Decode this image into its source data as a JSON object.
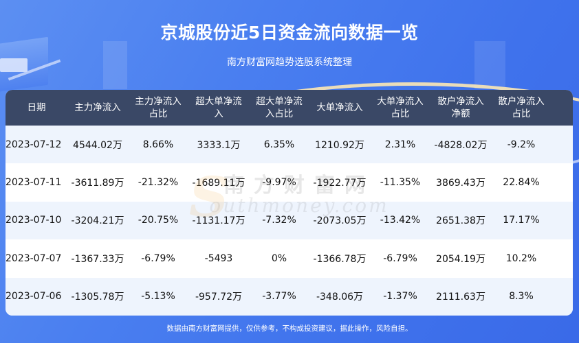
{
  "header": {
    "title": "京城股份近5日资金流向数据一览",
    "subtitle": "南方财富网趋势选股系统整理"
  },
  "table": {
    "columns": [
      "日期",
      "主力净流入",
      "主力净流入\n占比",
      "超大单净流\n入",
      "超大单净流\n入占比",
      "大单净流入",
      "大单净流入\n占比",
      "散户净流入\n净额",
      "散户净流入\n占比"
    ],
    "rows": [
      [
        "2023-07-12",
        "4544.02万",
        "8.66%",
        "3333.1万",
        "6.35%",
        "1210.92万",
        "2.31%",
        "-4828.02万",
        "-9.2%"
      ],
      [
        "2023-07-11",
        "-3611.89万",
        "-21.32%",
        "-1689.11万",
        "-9.97%",
        "-1922.77万",
        "-11.35%",
        "3869.43万",
        "22.84%"
      ],
      [
        "2023-07-10",
        "-3204.21万",
        "-20.75%",
        "-1131.17万",
        "-7.32%",
        "-2073.05万",
        "-13.42%",
        "2651.38万",
        "17.17%"
      ],
      [
        "2023-07-07",
        "-1367.33万",
        "-6.79%",
        "-5493",
        "0%",
        "-1366.78万",
        "-6.79%",
        "2054.19万",
        "10.2%"
      ],
      [
        "2023-07-06",
        "-1305.78万",
        "-5.13%",
        "-957.72万",
        "-3.77%",
        "-348.06万",
        "-1.37%",
        "2111.63万",
        "8.3%"
      ]
    ]
  },
  "watermark": {
    "cn": "南方财富网",
    "en": "outhmoney.com",
    "s": "S"
  },
  "footer": {
    "disclaimer": "数据由南方财富网提供，仅供参考，不构成投资建议，据此操作，风险自担。"
  },
  "colors": {
    "background": "#4a7ff0",
    "table_header": "#3a4866",
    "row_odd": "#eef4fd",
    "row_even": "#ffffff",
    "accent_arc": "#f3e2b7"
  }
}
